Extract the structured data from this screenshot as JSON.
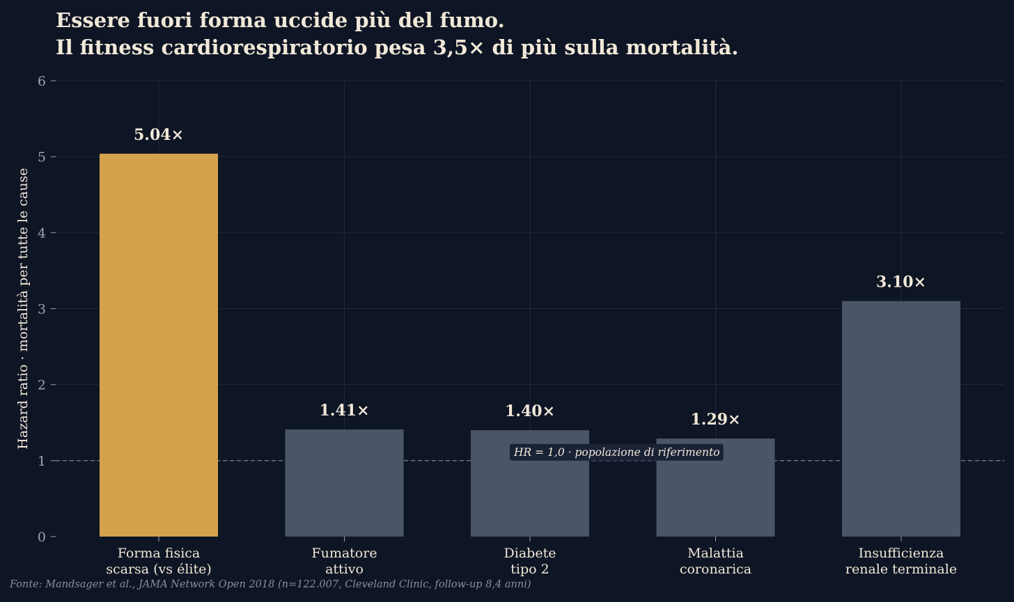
{
  "chart_data": {
    "type": "bar",
    "title": "Essere fuori forma uccide più del fumo.",
    "subtitle": "Il fitness cardiorespiratorio pesa 3,5× di più sulla mortalità.",
    "ylabel": "Hazard ratio · mortalità per tutte le cause",
    "xlabel": "",
    "ylim": [
      0,
      6
    ],
    "yticks": [
      "0",
      "1",
      "2",
      "3",
      "4",
      "5",
      "6"
    ],
    "grid": true,
    "categories": [
      [
        "Forma fisica",
        "scarsa (vs élite)"
      ],
      [
        "Fumatore",
        "attivo"
      ],
      [
        "Diabete",
        "tipo 2"
      ],
      [
        "Malattia",
        "coronarica"
      ],
      [
        "Insufficienza",
        "renale terminale"
      ]
    ],
    "values": [
      5.04,
      1.41,
      1.4,
      1.29,
      3.1
    ],
    "value_labels": [
      "5.04×",
      "1.41×",
      "1.40×",
      "1.29×",
      "3.10×"
    ],
    "reference_line": {
      "y": 1.0,
      "label": "HR = 1,0 · popolazione di riferimento"
    },
    "colors": {
      "highlight": "#d4a24c",
      "bar": "#4a5568",
      "background": "#0e1524",
      "grid": "#1f2a40",
      "text": "#f1e8d8",
      "tick_text": "#a0a4ac"
    }
  },
  "footer": "Fonte: Mandsager et al., JAMA Network Open 2018 (n=122.007, Cleveland Clinic, follow-up 8,4 anni)"
}
